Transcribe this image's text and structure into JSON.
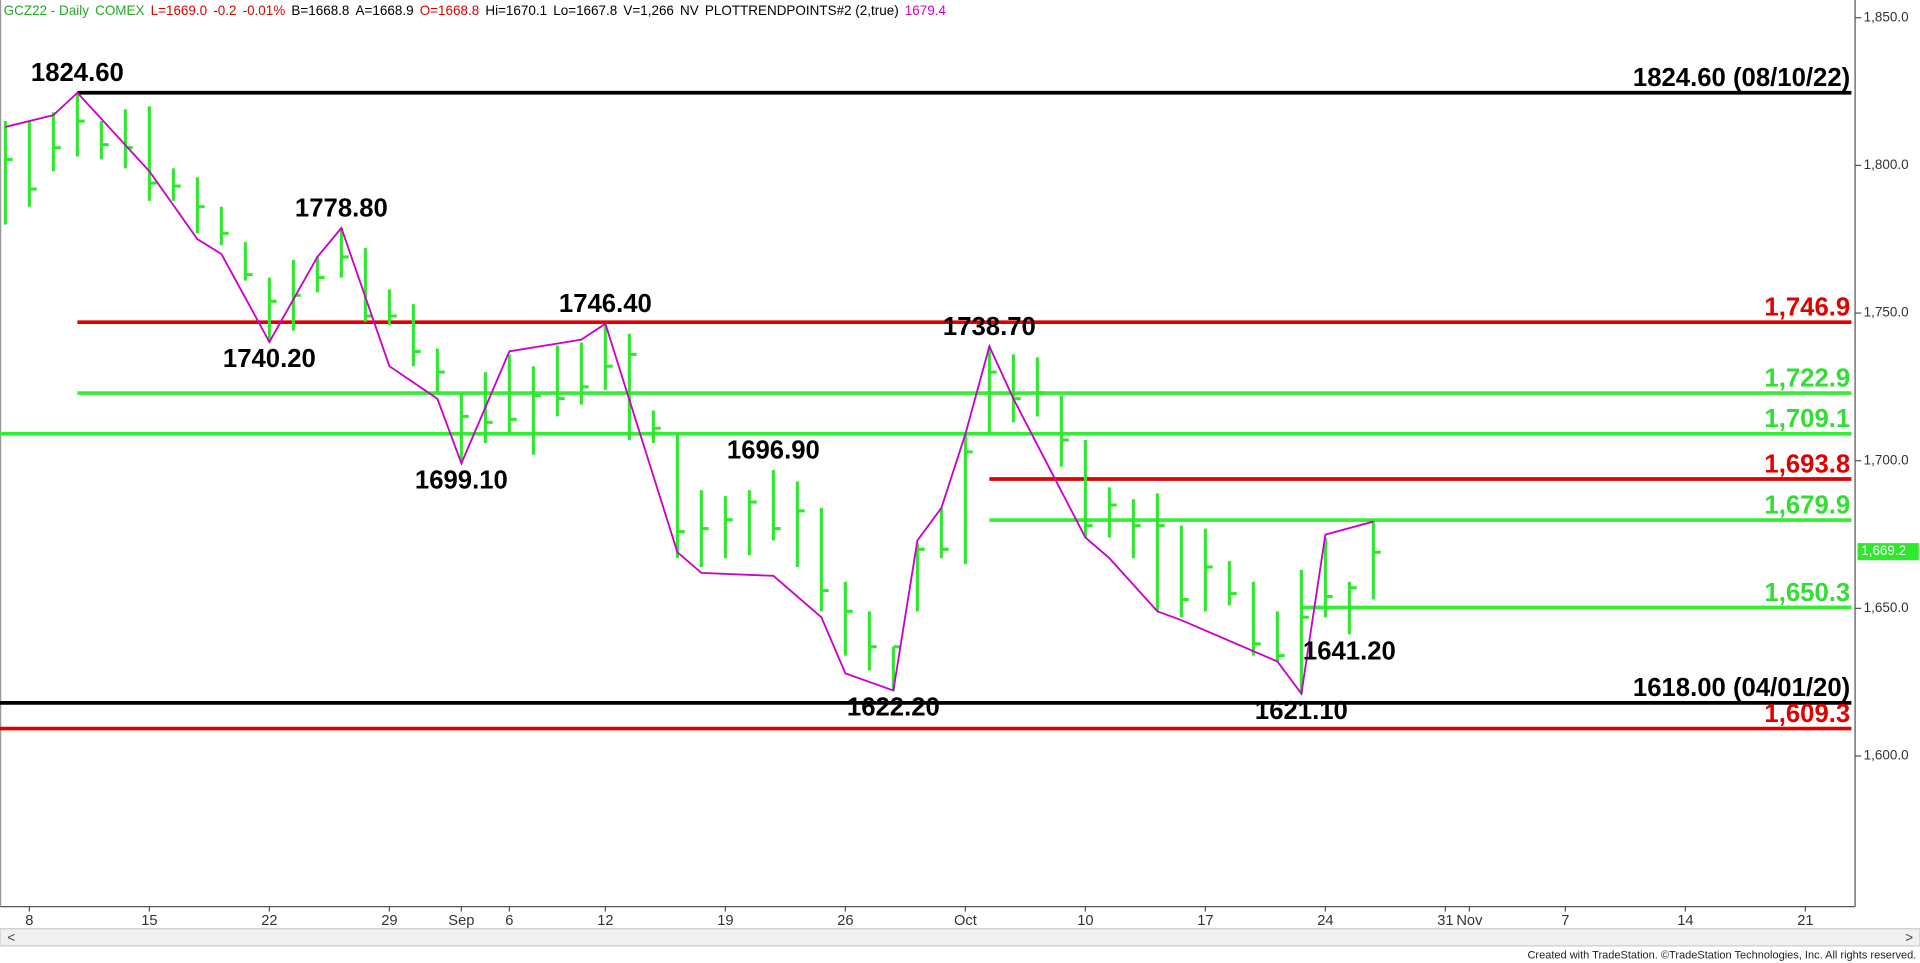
{
  "chart_data": {
    "type": "hlc_bar",
    "header": [
      {
        "text": "GCZ22 - Daily",
        "color": "#22aa22"
      },
      {
        "text": "COMEX",
        "color": "#22aa22"
      },
      {
        "text": "L=1669.0",
        "color": "#dd0000"
      },
      {
        "text": "-0.2",
        "color": "#dd0000"
      },
      {
        "text": "-0.01%",
        "color": "#dd0000"
      },
      {
        "text": "B=1668.8",
        "color": "#000000"
      },
      {
        "text": "A=1668.9",
        "color": "#000000"
      },
      {
        "text": "O=1668.8",
        "color": "#dd0000"
      },
      {
        "text": "Hi=1670.1",
        "color": "#000000"
      },
      {
        "text": "Lo=1667.8",
        "color": "#000000"
      },
      {
        "text": "V=1,266",
        "color": "#000000"
      },
      {
        "text": "NV",
        "color": "#000000"
      },
      {
        "text": "PLOTTRENDPOINTS#2 (2,true)",
        "color": "#000000"
      },
      {
        "text": "1679.4",
        "color": "#cc00cc"
      }
    ],
    "categories": [
      null,
      "8",
      null,
      null,
      null,
      null,
      "15",
      null,
      null,
      null,
      null,
      "22",
      null,
      null,
      null,
      null,
      "29",
      null,
      null,
      "Sep",
      null,
      "6",
      null,
      null,
      null,
      "12",
      null,
      null,
      null,
      null,
      "19",
      null,
      null,
      null,
      null,
      "26",
      null,
      null,
      null,
      null,
      "Oct",
      null,
      null,
      null,
      null,
      "10",
      null,
      null,
      null,
      null,
      "17",
      null,
      null,
      null,
      null,
      "24",
      null,
      null,
      null,
      null,
      "31",
      "Nov",
      null,
      null,
      null,
      "7",
      null,
      null,
      null,
      null,
      "14",
      null,
      null,
      null,
      null,
      "21",
      null
    ],
    "color": "#2ee82e",
    "high": [
      1815,
      1815,
      1818,
      1824.6,
      1815,
      1819,
      1820,
      1799,
      1796,
      1786,
      1774,
      1762,
      1768,
      1769,
      1778.8,
      1772,
      1758,
      1753,
      1738,
      1723,
      1730,
      1736,
      1732,
      1739,
      1740,
      1746.4,
      1743,
      1717,
      1709,
      1690,
      1688,
      1690,
      1696.9,
      1693,
      1684,
      1659,
      1649,
      1637,
      1672,
      1684,
      1709,
      1738.7,
      1736,
      1735,
      1722,
      1707,
      1691,
      1687,
      1689,
      1678,
      1677,
      1666,
      1659,
      1649,
      1663,
      1674,
      1659,
      1680,
      null,
      null,
      null,
      null,
      null,
      null,
      null,
      null,
      null,
      null,
      null,
      null,
      null,
      null,
      null,
      null,
      null,
      null,
      null
    ],
    "low": [
      1780,
      1786,
      1798,
      1803,
      1802,
      1799,
      1788,
      1788,
      1777,
      1773,
      1761,
      1740.2,
      1744,
      1757,
      1762,
      1747,
      1746,
      1732,
      1723,
      1699.1,
      1706,
      1709,
      1702,
      1715,
      1719,
      1724,
      1707,
      1706,
      1667,
      1664,
      1667,
      1668,
      1673,
      1664,
      1649,
      1634,
      1629,
      1622.2,
      1649,
      1667,
      1665,
      1709,
      1713,
      1715,
      1698,
      1674,
      1674,
      1667,
      1649,
      1647,
      1649,
      1651,
      1634,
      1632,
      1621.1,
      1647,
      1641.2,
      1653,
      null,
      null,
      null,
      null,
      null,
      null,
      null,
      null,
      null,
      null,
      null,
      null,
      null,
      null,
      null,
      null,
      null,
      null,
      null
    ],
    "close": [
      1802,
      1792,
      1806,
      1815,
      1807,
      1806,
      1794,
      1793,
      1786,
      1777,
      1763,
      1754,
      1756,
      1762,
      1769,
      1749,
      1749,
      1737,
      1730,
      1715,
      1713,
      1714,
      1722,
      1721,
      1725,
      1732,
      1736,
      1711,
      1676,
      1677,
      1680,
      1686,
      1677,
      1683,
      1656,
      1649,
      1637,
      1637,
      1670,
      1670,
      1703,
      1730,
      1721,
      1723,
      1707,
      1678,
      1685,
      1678,
      1678,
      1653,
      1664,
      1655,
      1638,
      1634,
      1647,
      1654,
      1657,
      1669,
      null,
      null,
      null,
      null,
      null,
      null,
      null,
      null,
      null,
      null,
      null,
      null,
      null,
      null,
      null,
      null,
      null,
      null,
      null
    ],
    "trend": {
      "color": "#cc00cc",
      "x": [
        0,
        2,
        3,
        6,
        8,
        9,
        11,
        13,
        14,
        16,
        18,
        19,
        21,
        24,
        25,
        28,
        29,
        32,
        34,
        35,
        37,
        38,
        39,
        40,
        41,
        42,
        45,
        46,
        48,
        49,
        53,
        54,
        55,
        57
      ],
      "values": [
        1813,
        1817,
        1824.6,
        1798,
        1775,
        1770,
        1740.2,
        1769,
        1778.8,
        1732,
        1721,
        1699.1,
        1737,
        1741,
        1746.4,
        1669,
        1662,
        1661,
        1647,
        1628,
        1622.2,
        1673,
        1684,
        1709,
        1738.7,
        1721,
        1674,
        1667,
        1649,
        1646,
        1632,
        1621.1,
        1675,
        1679.4
      ]
    },
    "annotations": [
      {
        "text": "1824.60",
        "at": 3,
        "value": 1824.6,
        "pos": "above"
      },
      {
        "text": "1778.80",
        "at": 14,
        "value": 1778.8,
        "pos": "above"
      },
      {
        "text": "1740.20",
        "at": 11,
        "value": 1740.2,
        "pos": "below"
      },
      {
        "text": "1746.40",
        "at": 25,
        "value": 1746.4,
        "pos": "above"
      },
      {
        "text": "1699.10",
        "at": 19,
        "value": 1699.1,
        "pos": "below"
      },
      {
        "text": "1696.90",
        "at": 32,
        "value": 1696.9,
        "pos": "above"
      },
      {
        "text": "1738.70",
        "at": 41,
        "value": 1738.7,
        "pos": "above"
      },
      {
        "text": "1622.20",
        "at": 37,
        "value": 1622.2,
        "pos": "below"
      },
      {
        "text": "1621.10",
        "at": 54,
        "value": 1621.1,
        "pos": "below"
      },
      {
        "text": "1641.20",
        "at": 56,
        "value": 1641.2,
        "pos": "below"
      }
    ],
    "levels": [
      {
        "value": 1824.6,
        "label": "1824.60 (08/10/22)",
        "color": "#000000",
        "from": 3
      },
      {
        "value": 1746.9,
        "label": "1,746.9",
        "color": "#e00000",
        "from": 3
      },
      {
        "value": 1722.9,
        "label": "1,722.9",
        "color": "#33ee33",
        "from": 3
      },
      {
        "value": 1709.1,
        "label": "1,709.1",
        "color": "#33ee33",
        "from": 0
      },
      {
        "value": 1693.8,
        "label": "1,693.8",
        "color": "#e00000",
        "from": 41
      },
      {
        "value": 1679.9,
        "label": "1,679.9",
        "color": "#33ee33",
        "from": 41
      },
      {
        "value": 1650.3,
        "label": "1,650.3",
        "color": "#33ee33",
        "from": 54
      },
      {
        "value": 1618,
        "label": "1618.00 (04/01/20)",
        "color": "#000000",
        "from": 0
      },
      {
        "value": 1609.3,
        "label": "1,609.3",
        "color": "#e00000",
        "from": 0
      }
    ],
    "last": {
      "value": 1669.2,
      "label": "1,669.2",
      "color": "#2ee82e"
    },
    "ylim": [
      1549,
      1856
    ],
    "yticks": [
      {
        "value": 1850,
        "label": "1,850.0"
      },
      {
        "value": 1800,
        "label": "1,800.0"
      },
      {
        "value": 1750,
        "label": "1,750.0"
      },
      {
        "value": 1700,
        "label": "1,700.0"
      },
      {
        "value": 1650,
        "label": "1,650.0"
      },
      {
        "value": 1600,
        "label": "1,600.0"
      }
    ],
    "footer": "Created with TradeStation. ©TradeStation Technologies, Inc. All rights reserved."
  }
}
